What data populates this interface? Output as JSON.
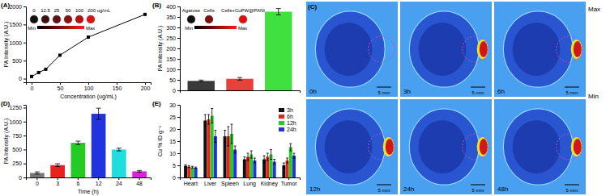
{
  "chart_data": [
    {
      "type": "line",
      "title": "(A)",
      "x": [
        0,
        12.5,
        25,
        50,
        100,
        200
      ],
      "values": [
        60,
        170,
        260,
        650,
        1150,
        1780
      ],
      "xlim": [
        -10,
        210
      ],
      "xticks": [
        0,
        50,
        100,
        150,
        200
      ],
      "ylim": [
        -100,
        2000
      ],
      "yticks": [
        0,
        500,
        1000,
        1500,
        2000
      ],
      "x_label": "Concentration (ug/mL)",
      "y_label": "PA Intensity (A.U.)",
      "color": "#000000",
      "marker": "square",
      "inset_labels": [
        "0",
        "12.5",
        "25",
        "50",
        "100",
        "200 ug/mL"
      ],
      "colorbar_labels": [
        "Min",
        "Max"
      ]
    },
    {
      "type": "bar",
      "title": "(B)",
      "categories": [
        "Agarose",
        "Cells",
        "Cells+CuPW@PANI"
      ],
      "values": [
        45,
        55,
        375
      ],
      "errors": [
        4,
        6,
        15
      ],
      "colors": [
        "#3a3a3a",
        "#e8413c",
        "#3fe03f"
      ],
      "ylim": [
        0,
        400
      ],
      "yticks": [
        0,
        50,
        100,
        150,
        200,
        250,
        300,
        350,
        400
      ],
      "y_label": "PA Intensity (A.U.)",
      "tick_labels": "y",
      "colorbar_labels": [
        "Min",
        "Max"
      ]
    },
    {
      "type": "image",
      "title": "(C)",
      "categories": [
        "0h",
        "3h",
        "6h",
        "12h",
        "24h",
        "48h"
      ],
      "scale_bar": "5 mm",
      "colorbar_labels": [
        "Max",
        "Min"
      ]
    },
    {
      "type": "bar",
      "title": "(D)",
      "categories": [
        "0",
        "3",
        "6",
        "12",
        "24",
        "48"
      ],
      "values": [
        80,
        220,
        620,
        1140,
        500,
        110
      ],
      "errors": [
        20,
        25,
        30,
        100,
        25,
        15
      ],
      "colors": [
        "#777777",
        "#e8221c",
        "#22cc22",
        "#2233dd",
        "#22dddd",
        "#dd22dd"
      ],
      "ylim": [
        0,
        1300
      ],
      "yticks": [
        0,
        250,
        500,
        750,
        1000,
        1250
      ],
      "x_label": "Time (h)",
      "y_label": "PA Intensity (A.U.)"
    },
    {
      "type": "bar",
      "title": "(E)",
      "categories": [
        "Heart",
        "Liver",
        "Spleen",
        "Lung",
        "Kidney",
        "Tumor"
      ],
      "series": [
        {
          "name": "3h",
          "color": "#111111",
          "values": [
            4.8,
            23.5,
            17,
            7.5,
            7.5,
            5
          ],
          "errors": [
            0.5,
            2.5,
            2.5,
            1,
            1.5,
            1
          ]
        },
        {
          "name": "6h",
          "color": "#e8221c",
          "values": [
            4.5,
            24,
            17,
            8.5,
            8.5,
            7
          ],
          "errors": [
            0.4,
            2,
            4,
            1.5,
            1.5,
            1
          ]
        },
        {
          "name": "12h",
          "color": "#22cc22",
          "values": [
            4.2,
            25.5,
            18,
            9.5,
            9.5,
            12.5
          ],
          "errors": [
            0.4,
            3,
            4,
            1.5,
            2,
            1.5
          ]
        },
        {
          "name": "24h",
          "color": "#2233dd",
          "values": [
            4,
            17,
            11.5,
            7,
            6.5,
            9
          ],
          "errors": [
            0.3,
            2.5,
            1.5,
            1,
            1,
            1
          ]
        }
      ],
      "ylim": [
        0,
        30
      ],
      "yticks": [
        0,
        5,
        10,
        15,
        20,
        25,
        30
      ],
      "y_label": "Cu % ID g⁻¹",
      "legend": "upper right"
    }
  ]
}
